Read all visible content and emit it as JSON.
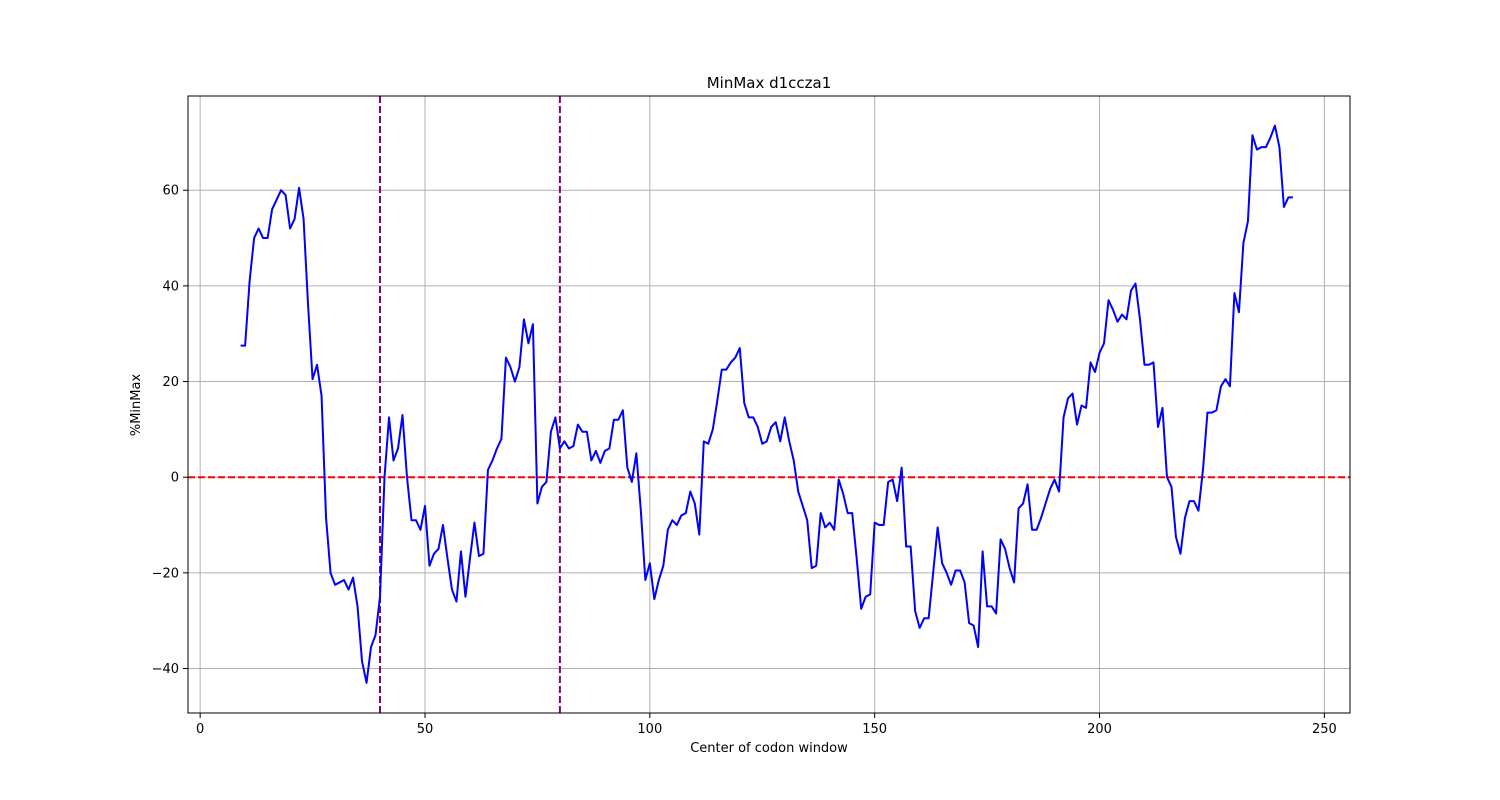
{
  "chart_data": {
    "type": "line",
    "title": "MinMax d1ccza1",
    "xlabel": "Center of codon window",
    "ylabel": "%MinMax",
    "xlim": [
      -2.7,
      255.7
    ],
    "ylim": [
      -49.3,
      79.7
    ],
    "x_ticks": [
      0,
      50,
      100,
      150,
      200,
      250
    ],
    "y_ticks": [
      -40,
      -20,
      0,
      20,
      40,
      60
    ],
    "grid": true,
    "legend": "none",
    "series": [
      {
        "color": "#0000ff",
        "x": [
          9,
          10,
          11,
          12,
          13,
          14,
          15,
          16,
          17,
          18,
          19,
          20,
          21,
          22,
          23,
          24,
          25,
          26,
          27,
          28,
          29,
          30,
          31,
          32,
          33,
          34,
          35,
          36,
          37,
          38,
          39,
          40,
          41,
          42,
          43,
          44,
          45,
          46,
          47,
          48,
          49,
          50,
          51,
          52,
          53,
          54,
          55,
          56,
          57,
          58,
          59,
          60,
          61,
          62,
          63,
          64,
          65,
          66,
          67,
          68,
          69,
          70,
          71,
          72,
          73,
          74,
          75,
          76,
          77,
          78,
          79,
          80,
          81,
          82,
          83,
          84,
          85,
          86,
          87,
          88,
          89,
          90,
          91,
          92,
          93,
          94,
          95,
          96,
          97,
          98,
          99,
          100,
          101,
          102,
          103,
          104,
          105,
          106,
          107,
          108,
          109,
          110,
          111,
          112,
          113,
          114,
          115,
          116,
          117,
          118,
          119,
          120,
          121,
          122,
          123,
          124,
          125,
          126,
          127,
          128,
          129,
          130,
          131,
          132,
          133,
          134,
          135,
          136,
          137,
          138,
          139,
          140,
          141,
          142,
          143,
          144,
          145,
          146,
          147,
          148,
          149,
          150,
          151,
          152,
          153,
          154,
          155,
          156,
          157,
          158,
          159,
          160,
          161,
          162,
          163,
          164,
          165,
          166,
          167,
          168,
          169,
          170,
          171,
          172,
          173,
          174,
          175,
          176,
          177,
          178,
          179,
          180,
          181,
          182,
          183,
          184,
          185,
          186,
          187,
          188,
          189,
          190,
          191,
          192,
          193,
          194,
          195,
          196,
          197,
          198,
          199,
          200,
          201,
          202,
          203,
          204,
          205,
          206,
          207,
          208,
          209,
          210,
          211,
          212,
          213,
          214,
          215,
          216,
          217,
          218,
          219,
          220,
          221,
          222,
          223,
          224,
          225,
          226,
          227,
          228,
          229,
          230,
          231,
          232,
          233,
          234,
          235,
          236,
          237,
          238,
          239,
          240,
          241,
          242,
          243
        ],
        "values": [
          27.5,
          27.5,
          41,
          50,
          52,
          50,
          50,
          56,
          58,
          60,
          59,
          52,
          54,
          60.5,
          54,
          36,
          20.5,
          23.5,
          17,
          -8.5,
          -20,
          -22.5,
          -22,
          -21.5,
          -23.5,
          -21,
          -27,
          -38.5,
          -43,
          -35.5,
          -33,
          -25,
          0,
          12.5,
          3.5,
          6,
          13,
          0,
          -9,
          -9,
          -11,
          -6,
          -18.5,
          -16,
          -15,
          -10,
          -17,
          -23.5,
          -26,
          -15.5,
          -25,
          -17,
          -9.5,
          -16.5,
          -16,
          1.5,
          3.5,
          6,
          8,
          25,
          23,
          20,
          23,
          33,
          28,
          32,
          -5.5,
          -2,
          -1,
          9.5,
          12.5,
          6,
          7.5,
          6,
          6.5,
          11,
          9.5,
          9.5,
          3.5,
          5.5,
          3,
          5.5,
          6,
          12,
          12,
          14,
          2,
          -1,
          5,
          -7,
          -21.5,
          -18,
          -25.5,
          -21.5,
          -18.5,
          -11,
          -9,
          -10,
          -8,
          -7.5,
          -3,
          -5.5,
          -12,
          7.5,
          7,
          10,
          16,
          22.5,
          22.5,
          24,
          25,
          27,
          15.5,
          12.5,
          12.5,
          10.5,
          7,
          7.5,
          10.5,
          11.5,
          7.5,
          12.5,
          7.5,
          3.5,
          -3,
          -6,
          -9,
          -19,
          -18.5,
          -7.5,
          -10.5,
          -9.5,
          -11,
          -0.5,
          -3.5,
          -7.5,
          -7.5,
          -17,
          -27.5,
          -25,
          -24.5,
          -9.5,
          -10,
          -10,
          -1,
          -0.5,
          -5,
          2,
          -14.5,
          -14.5,
          -28,
          -31.5,
          -29.5,
          -29.5,
          -20,
          -10.5,
          -18,
          -20,
          -22.5,
          -19.5,
          -19.5,
          -22,
          -30.5,
          -31,
          -35.5,
          -15.5,
          -27,
          -27,
          -28.5,
          -13,
          -15,
          -19,
          -22,
          -6.5,
          -5.5,
          -1.5,
          -11,
          -11,
          -8.5,
          -5.5,
          -2.5,
          -0.5,
          -3,
          12.5,
          16.5,
          17.5,
          11,
          15,
          14.5,
          24,
          22,
          26,
          28,
          37,
          35,
          32.5,
          34,
          33,
          39,
          40.5,
          33,
          23.5,
          23.5,
          24,
          10.5,
          14.5,
          0,
          -2,
          -12.5,
          -16,
          -8.5,
          -5,
          -5,
          -7,
          1.5,
          13.5,
          13.5,
          14,
          19,
          20.5,
          19,
          38.5,
          34.5,
          49,
          53.5,
          71.5,
          68.5,
          69,
          69,
          71,
          73.5,
          69,
          56.5,
          58.5,
          58.5
        ]
      }
    ],
    "reference_lines": [
      {
        "orientation": "horizontal",
        "value": 0,
        "color": "#ff0000",
        "style": "dashed"
      },
      {
        "orientation": "vertical",
        "value": 40,
        "color": "#800080",
        "style": "dashed"
      },
      {
        "orientation": "vertical",
        "value": 80,
        "color": "#800080",
        "style": "dashed"
      }
    ]
  }
}
